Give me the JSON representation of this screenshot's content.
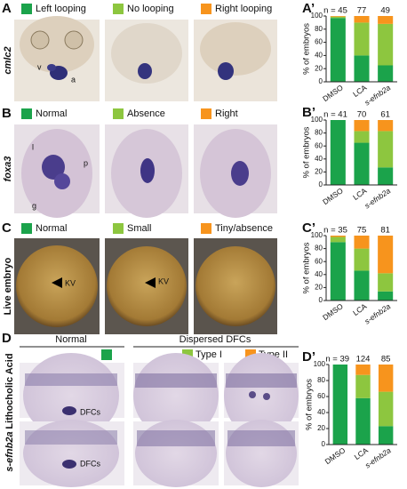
{
  "panels": [
    {
      "label": "A",
      "row_label": "cmlc2",
      "annotations": [
        "v",
        "a"
      ]
    },
    {
      "label": "B",
      "row_label": "foxa3",
      "annotations": [
        "l",
        "p",
        "g"
      ]
    },
    {
      "label": "C",
      "row_label": "Live embryo",
      "annotations": [
        "KV",
        "KV"
      ]
    },
    {
      "label": "D",
      "column_labels": [
        "Dispersed DFCs"
      ],
      "row_labels": [
        "Lithocholic Acid",
        "s-efnb2a"
      ],
      "annotations": [
        "DFCs",
        "DFCs"
      ]
    }
  ],
  "chart_data": [
    {
      "type": "bar",
      "stacked": true,
      "title": "A’",
      "ylabel": "% of embryos",
      "categories": [
        "DMSO",
        "LCA",
        "s-efnb2a"
      ],
      "ylim": [
        0,
        100
      ],
      "yticks": [
        0,
        20,
        40,
        60,
        80,
        100
      ],
      "annotations": [
        "n = 45",
        "77",
        "49"
      ],
      "series": [
        {
          "name": "Left looping",
          "color": "#1ba34b",
          "values": [
            97,
            40,
            25
          ]
        },
        {
          "name": "No looping",
          "color": "#8dc63f",
          "values": [
            2,
            50,
            63
          ]
        },
        {
          "name": "Right looping",
          "color": "#f7941d",
          "values": [
            1,
            10,
            12
          ]
        }
      ]
    },
    {
      "type": "bar",
      "stacked": true,
      "title": "B’",
      "ylabel": "% of embryos",
      "categories": [
        "DMSO",
        "LCA",
        "s-efnb2a"
      ],
      "ylim": [
        0,
        100
      ],
      "yticks": [
        0,
        20,
        40,
        60,
        80,
        100
      ],
      "annotations": [
        "n = 41",
        "70",
        "61"
      ],
      "series": [
        {
          "name": "Normal",
          "color": "#1ba34b",
          "values": [
            100,
            65,
            27
          ]
        },
        {
          "name": "Absence",
          "color": "#8dc63f",
          "values": [
            0,
            18,
            56
          ]
        },
        {
          "name": "Right",
          "color": "#f7941d",
          "values": [
            0,
            17,
            17
          ]
        }
      ]
    },
    {
      "type": "bar",
      "stacked": true,
      "title": "C’",
      "ylabel": "% of embryos",
      "categories": [
        "DMSO",
        "LCA",
        "s-efnb2a"
      ],
      "ylim": [
        0,
        100
      ],
      "yticks": [
        0,
        20,
        40,
        60,
        80,
        100
      ],
      "annotations": [
        "n = 35",
        "75",
        "81"
      ],
      "series": [
        {
          "name": "Normal",
          "color": "#1ba34b",
          "values": [
            90,
            46,
            14
          ]
        },
        {
          "name": "Small",
          "color": "#8dc63f",
          "values": [
            8,
            34,
            28
          ]
        },
        {
          "name": "Tiny/absence",
          "color": "#f7941d",
          "values": [
            2,
            20,
            58
          ]
        }
      ]
    },
    {
      "type": "bar",
      "stacked": true,
      "title": "D’",
      "ylabel": "% of embryos",
      "categories": [
        "DMSO",
        "LCA",
        "s-efnb2a"
      ],
      "ylim": [
        0,
        100
      ],
      "yticks": [
        0,
        20,
        40,
        60,
        80,
        100
      ],
      "annotations": [
        "n = 39",
        "124",
        "85"
      ],
      "series": [
        {
          "name": "Normal",
          "color": "#1ba34b",
          "values": [
            100,
            58,
            23
          ]
        },
        {
          "name": "Type I",
          "color": "#8dc63f",
          "values": [
            0,
            29,
            43
          ]
        },
        {
          "name": "Type II",
          "color": "#f7941d",
          "values": [
            0,
            13,
            34
          ]
        }
      ]
    }
  ]
}
